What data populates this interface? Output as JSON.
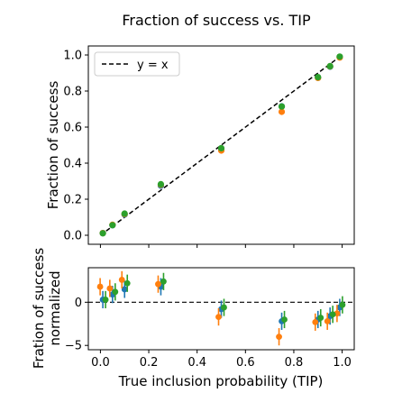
{
  "figure_title": "Fraction of success vs. TIP",
  "chart_data": [
    {
      "type": "scatter",
      "panel": "top",
      "ylabel": "Fraction of success",
      "xlim": [
        -0.05,
        1.05
      ],
      "ylim": [
        -0.05,
        1.05
      ],
      "yticks": [
        0.0,
        0.2,
        0.4,
        0.6,
        0.8,
        1.0
      ],
      "ytick_labels": [
        "0.0",
        "0.2",
        "0.4",
        "0.6",
        "0.8",
        "1.0"
      ],
      "legend": {
        "placement": "top-left",
        "entries": [
          "y = x"
        ]
      },
      "reference_line": {
        "label": "y = x",
        "style": "dashed",
        "color": "#000000"
      },
      "series": [
        {
          "color": "#1f77b4",
          "x": [
            0.01,
            0.05,
            0.1,
            0.25,
            0.5,
            0.75,
            0.9,
            0.95,
            0.99
          ],
          "y": [
            0.012,
            0.056,
            0.115,
            0.275,
            0.475,
            0.715,
            0.875,
            0.935,
            0.988
          ]
        },
        {
          "color": "#ff7f0e",
          "x": [
            0.01,
            0.05,
            0.1,
            0.25,
            0.5,
            0.75,
            0.9,
            0.95,
            0.99
          ],
          "y": [
            0.012,
            0.058,
            0.118,
            0.28,
            0.47,
            0.685,
            0.873,
            0.937,
            0.986
          ]
        },
        {
          "color": "#2ca02c",
          "x": [
            0.01,
            0.05,
            0.1,
            0.25,
            0.5,
            0.75,
            0.9,
            0.95,
            0.99
          ],
          "y": [
            0.011,
            0.056,
            0.12,
            0.283,
            0.483,
            0.714,
            0.877,
            0.938,
            0.991
          ]
        }
      ]
    },
    {
      "type": "scatter",
      "panel": "bottom",
      "xlabel": "True inclusion probability (TIP)",
      "ylabel_lines": [
        "Fration of success",
        "normalized"
      ],
      "xlim": [
        -0.05,
        1.05
      ],
      "ylim": [
        -5.5,
        4.0
      ],
      "xticks": [
        0.0,
        0.2,
        0.4,
        0.6,
        0.8,
        1.0
      ],
      "xtick_labels": [
        "0.0",
        "0.2",
        "0.4",
        "0.6",
        "0.8",
        "1.0"
      ],
      "yticks": [
        -5,
        0
      ],
      "ytick_labels": [
        "−5",
        "0"
      ],
      "zero_line": {
        "y": 0,
        "style": "dashed",
        "color": "#000000"
      },
      "series": [
        {
          "color": "#1f77b4",
          "x": [
            0.01,
            0.05,
            0.1,
            0.25,
            0.5,
            0.75,
            0.9,
            0.95,
            0.99
          ],
          "y": [
            0.3,
            0.9,
            1.5,
            1.8,
            -0.8,
            -2.2,
            -2.0,
            -1.6,
            -0.6
          ],
          "err": [
            1.0,
            1.0,
            1.0,
            1.0,
            1.0,
            1.0,
            1.0,
            1.0,
            1.0
          ]
        },
        {
          "color": "#ff7f0e",
          "x": [
            0.01,
            0.05,
            0.1,
            0.25,
            0.5,
            0.75,
            0.9,
            0.95,
            0.99
          ],
          "y": [
            1.8,
            1.6,
            2.6,
            2.1,
            -1.7,
            -4.0,
            -2.3,
            -2.2,
            -1.3
          ],
          "err": [
            1.0,
            1.0,
            1.0,
            1.0,
            1.0,
            1.0,
            1.0,
            1.0,
            1.0
          ]
        },
        {
          "color": "#2ca02c",
          "x": [
            0.01,
            0.05,
            0.1,
            0.25,
            0.5,
            0.75,
            0.9,
            0.95,
            0.99
          ],
          "y": [
            0.3,
            1.2,
            2.2,
            2.4,
            -0.6,
            -2.0,
            -1.8,
            -1.4,
            -0.3
          ],
          "err": [
            1.0,
            1.0,
            1.0,
            1.0,
            1.0,
            1.0,
            1.0,
            1.0,
            1.0
          ]
        }
      ]
    }
  ]
}
